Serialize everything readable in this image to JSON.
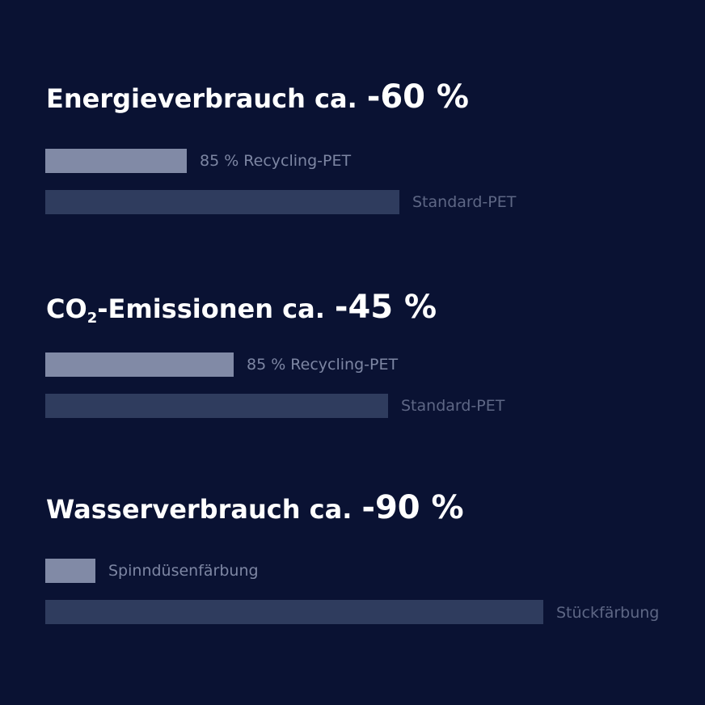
{
  "colors": {
    "background": "#0a1233",
    "bar_light": "#818aa6",
    "bar_dark": "#2f3c5e",
    "title": "#ffffff",
    "label": "#7d86a3"
  },
  "chart_data": [
    {
      "type": "bar",
      "orientation": "horizontal",
      "title_main": "Energieverbrauch ca.",
      "title_delta": "-60 %",
      "categories": [
        "85 % Recycling-PET",
        "Standard-PET"
      ],
      "values": [
        40,
        100
      ]
    },
    {
      "type": "bar",
      "orientation": "horizontal",
      "title_co": "CO",
      "title_sub": "2",
      "title_rest": "-Emissionen ca.",
      "title_delta": "-45 %",
      "categories": [
        "85 % Recycling-PET",
        "Standard-PET"
      ],
      "values": [
        55,
        100
      ]
    },
    {
      "type": "bar",
      "orientation": "horizontal",
      "title_main": "Wasserverbrauch ca.",
      "title_delta": "-90 %",
      "categories": [
        "Spinndüsenfärbung",
        "Stückfärbung"
      ],
      "values": [
        10,
        100
      ]
    }
  ]
}
